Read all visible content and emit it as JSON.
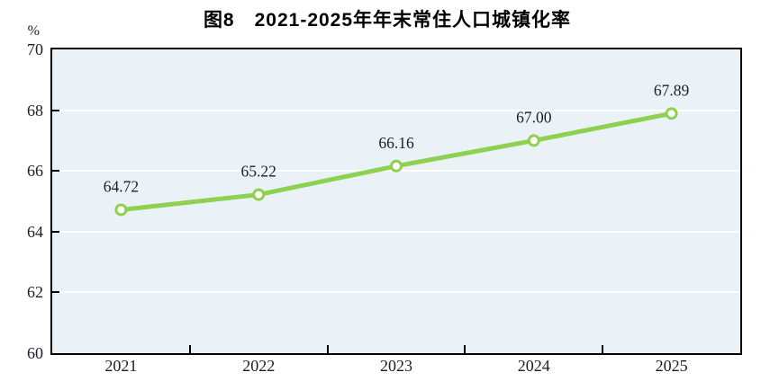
{
  "title": "图8　2021-2025年年末常住人口城镇化率",
  "chart_data": {
    "type": "line",
    "title": "图8　2021-2025年年末常住人口城镇化率",
    "categories": [
      "2021",
      "2022",
      "2023",
      "2024",
      "2025"
    ],
    "values": [
      64.72,
      65.22,
      66.16,
      67.0,
      67.89
    ],
    "point_labels": [
      "64.72",
      "65.22",
      "66.16",
      "67.00",
      "67.89"
    ],
    "xlabel": "",
    "ylabel": "%",
    "ylim": [
      60,
      70
    ],
    "yticks": [
      60,
      62,
      64,
      66,
      68,
      70
    ],
    "legend": "none",
    "grid": "horizontal",
    "colors": {
      "line": "#8ed050",
      "marker_fill": "#ffffff",
      "marker_stroke": "#8ed050",
      "plot_background": "#eaf2f8",
      "gridline": "#ffffff",
      "frame": "#000000",
      "text": "#1d1d26"
    }
  }
}
